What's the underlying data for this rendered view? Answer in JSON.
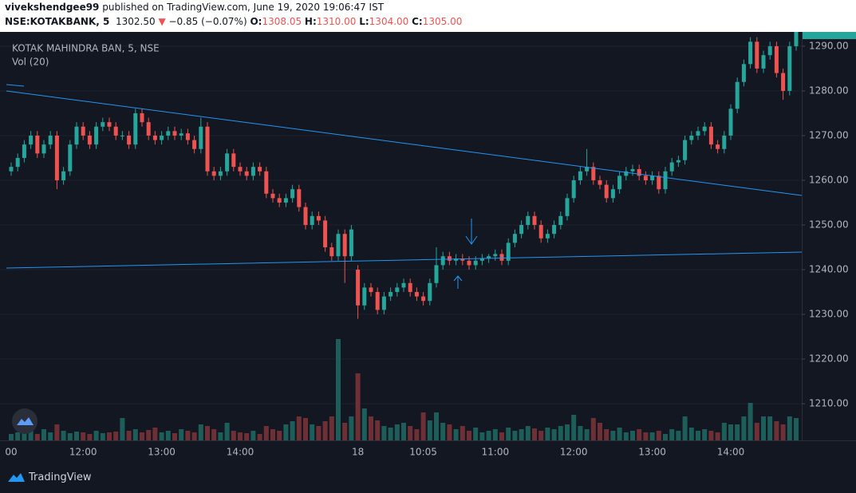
{
  "header": {
    "user": "vivekshendgee99",
    "published": "published on TradingView.com, June 19, 2020 19:06:47 IST",
    "symbol": "NSE:KOTAKBANK, 5",
    "price": "1302.50",
    "arrow": "▼",
    "change": "−0.85 (−0.07%)",
    "o_label": "O:",
    "o": "1308.05",
    "h_label": "H:",
    "h": "1310.00",
    "l_label": "L:",
    "l": "1304.00",
    "c_label": "C:",
    "c": "1305.00"
  },
  "footer": {
    "brand": "TradingView"
  },
  "chart_data": {
    "type": "candlestick",
    "title": "KOTAK MAHINDRA BAN, 5, NSE",
    "volume_label": "Vol (20)",
    "categories": [
      "00",
      null,
      null,
      null,
      null,
      null,
      null,
      null,
      null,
      null,
      null,
      "12:00",
      null,
      null,
      null,
      null,
      null,
      null,
      null,
      null,
      null,
      null,
      null,
      "13:00",
      null,
      null,
      null,
      null,
      null,
      null,
      null,
      null,
      null,
      null,
      null,
      "14:00",
      null,
      null,
      null,
      null,
      null,
      null,
      null,
      null,
      null,
      null,
      null,
      null,
      null,
      null,
      null,
      null,
      null,
      "18",
      null,
      null,
      null,
      null,
      null,
      null,
      null,
      null,
      null,
      "10:05",
      null,
      null,
      null,
      null,
      null,
      null,
      null,
      null,
      null,
      null,
      "11:00",
      null,
      null,
      null,
      null,
      null,
      null,
      null,
      null,
      null,
      null,
      null,
      "12:00",
      null,
      null,
      null,
      null,
      null,
      null,
      null,
      null,
      null,
      null,
      null,
      "13:00",
      null,
      null,
      null,
      null,
      null,
      null,
      null,
      null,
      null,
      null,
      null,
      "14:00",
      null,
      null,
      null,
      null,
      null,
      null,
      null,
      null,
      null,
      null
    ],
    "open": [
      1262,
      1263,
      1265,
      1268,
      1270,
      1266,
      1268,
      1270,
      1260,
      1262,
      1268,
      1272,
      1270,
      1268,
      1272,
      1273,
      1272,
      1270,
      1270,
      1268,
      1275,
      1273,
      1270,
      1269,
      1270,
      1271,
      1270,
      1270.5,
      1269,
      1267,
      1272,
      1262,
      1261,
      1262,
      1266,
      1263,
      1262,
      1261,
      1263,
      1262,
      1257,
      1256,
      1255,
      1256,
      1258,
      1254,
      1250,
      1252,
      1251,
      1245,
      1243,
      1248,
      1243,
      1240,
      1232,
      1236,
      1235,
      1231,
      1234,
      1235,
      1236,
      1237,
      1235,
      1234,
      1233,
      1237,
      1241,
      1243,
      1242,
      1242.5,
      1242,
      1241,
      1242,
      1242.5,
      1243,
      1243.5,
      1242,
      1246,
      1248,
      1250,
      1252,
      1250,
      1247,
      1248,
      1250,
      1252,
      1256,
      1260,
      1262,
      1263,
      1260,
      1259,
      1256,
      1258,
      1261,
      1262,
      1262.5,
      1261,
      1260,
      1261,
      1258,
      1262,
      1264,
      1264.5,
      1269,
      1270,
      1271,
      1272,
      1268,
      1267,
      1270,
      1276,
      1282,
      1286,
      1291,
      1285,
      1288,
      1290,
      1284,
      1280,
      1290
    ],
    "high": [
      1264,
      1266,
      1269,
      1271,
      1271,
      1269,
      1271,
      1271,
      1263,
      1269,
      1273,
      1273,
      1271,
      1273,
      1274,
      1274,
      1273,
      1271,
      1271,
      1276,
      1276,
      1274,
      1271,
      1271,
      1272,
      1272,
      1271.5,
      1271.5,
      1270,
      1274,
      1273,
      1263,
      1263,
      1267,
      1267,
      1264,
      1263,
      1264,
      1264,
      1263,
      1258,
      1257,
      1257,
      1259,
      1259,
      1255,
      1253,
      1253,
      1252,
      1246,
      1249,
      1249,
      1250,
      1241,
      1237,
      1237,
      1236,
      1235,
      1236,
      1237,
      1238,
      1238,
      1236,
      1235,
      1238,
      1245,
      1244,
      1244,
      1243.5,
      1243.5,
      1243,
      1243,
      1243.5,
      1243.5,
      1244.5,
      1244.5,
      1247,
      1249,
      1251,
      1253,
      1253,
      1251,
      1249,
      1251,
      1253,
      1257,
      1261,
      1263,
      1267,
      1264,
      1261,
      1260,
      1259,
      1262,
      1263,
      1263.5,
      1263.5,
      1262,
      1262,
      1262,
      1263,
      1265,
      1265.5,
      1270,
      1271,
      1272,
      1273,
      1273,
      1269,
      1271,
      1277,
      1283,
      1287,
      1292,
      1292,
      1289,
      1291,
      1291,
      1285,
      1291,
      1297
    ],
    "low": [
      1261,
      1262,
      1264,
      1267,
      1265,
      1265,
      1267,
      1258,
      1259,
      1261,
      1267,
      1269,
      1267,
      1267,
      1271,
      1271,
      1269,
      1269,
      1267,
      1267,
      1272,
      1269,
      1268,
      1268,
      1269,
      1269,
      1269,
      1268,
      1266,
      1266,
      1261,
      1260,
      1260,
      1261,
      1262,
      1261,
      1260,
      1260,
      1261,
      1256,
      1255,
      1254,
      1254,
      1255,
      1253,
      1249,
      1249,
      1250,
      1244,
      1242,
      1242,
      1237,
      1242,
      1229,
      1231,
      1234,
      1230,
      1230,
      1233,
      1234,
      1235,
      1234,
      1233,
      1232,
      1232,
      1236,
      1240,
      1241,
      1241,
      1241,
      1240,
      1240,
      1241,
      1241.5,
      1242,
      1241,
      1241,
      1245,
      1247,
      1249,
      1249,
      1246,
      1246,
      1247,
      1249,
      1251,
      1255,
      1259,
      1261,
      1259,
      1258,
      1255,
      1255,
      1257,
      1260,
      1261,
      1260,
      1259,
      1259,
      1257,
      1257,
      1261,
      1263,
      1263.5,
      1268,
      1269,
      1270,
      1267,
      1266,
      1266,
      1269,
      1275,
      1281,
      1285,
      1284,
      1284,
      1287,
      1283,
      1278,
      1279,
      1289
    ],
    "close": [
      1263,
      1265,
      1268,
      1270,
      1266,
      1268,
      1270,
      1260,
      1262,
      1268,
      1272,
      1270,
      1268,
      1272,
      1273,
      1272,
      1270,
      1270,
      1268,
      1275,
      1273,
      1270,
      1269,
      1270,
      1271,
      1270,
      1270.5,
      1269,
      1267,
      1272,
      1262,
      1261,
      1262,
      1266,
      1263,
      1262,
      1261,
      1263,
      1262,
      1257,
      1256,
      1255,
      1256,
      1258,
      1254,
      1250,
      1252,
      1251,
      1245,
      1243,
      1248,
      1243,
      1249,
      1232,
      1236,
      1235,
      1231,
      1234,
      1235,
      1236,
      1237,
      1235,
      1234,
      1233,
      1237,
      1241,
      1243,
      1242,
      1242.5,
      1242,
      1241,
      1242,
      1242.5,
      1243,
      1243.5,
      1242,
      1246,
      1248,
      1250,
      1252,
      1250,
      1247,
      1248,
      1250,
      1252,
      1256,
      1260,
      1262,
      1263,
      1260,
      1259,
      1256,
      1258,
      1261,
      1262,
      1262.5,
      1261,
      1260,
      1261,
      1258,
      1262,
      1264,
      1264.5,
      1269,
      1270,
      1271,
      1272,
      1268,
      1267,
      1270,
      1276,
      1282,
      1286,
      1291,
      1285,
      1288,
      1290,
      1284,
      1280,
      1290,
      1295
    ],
    "volume": [
      8,
      10,
      9,
      12,
      8,
      14,
      10,
      20,
      12,
      9,
      11,
      10,
      8,
      12,
      9,
      10,
      11,
      28,
      12,
      14,
      10,
      13,
      16,
      10,
      12,
      9,
      14,
      12,
      10,
      20,
      18,
      14,
      10,
      22,
      12,
      10,
      9,
      12,
      8,
      18,
      14,
      12,
      20,
      24,
      30,
      28,
      20,
      18,
      24,
      30,
      127,
      22,
      30,
      84,
      40,
      30,
      25,
      18,
      16,
      20,
      22,
      18,
      14,
      35,
      25,
      35,
      22,
      20,
      14,
      18,
      12,
      16,
      10,
      12,
      14,
      10,
      16,
      12,
      14,
      18,
      15,
      12,
      16,
      14,
      18,
      20,
      32,
      18,
      14,
      28,
      22,
      14,
      12,
      16,
      10,
      12,
      14,
      10,
      10,
      12,
      8,
      14,
      12,
      30,
      16,
      12,
      14,
      12,
      10,
      22,
      20,
      20,
      30,
      47,
      22,
      30,
      30,
      24,
      20,
      30,
      28
    ],
    "up_color": "#26a69a",
    "down_color": "#ef5350",
    "volume_up_color": "#1d5e5a",
    "volume_down_color": "#6e2f35",
    "ylim": [
      1201.8,
      1293.2
    ],
    "yticks": [
      {
        "value": 1210,
        "label": "1210.00"
      },
      {
        "value": 1220,
        "label": "1220.00"
      },
      {
        "value": 1230,
        "label": "1230.00"
      },
      {
        "value": 1240,
        "label": "1240.00"
      },
      {
        "value": 1250,
        "label": "1250.00"
      },
      {
        "value": 1260,
        "label": "1260.00"
      },
      {
        "value": 1270,
        "label": "1270.00"
      },
      {
        "value": 1280,
        "label": "1280.00"
      },
      {
        "value": 1290,
        "label": "1290.00"
      }
    ],
    "volume_ylim": [
      0,
      130
    ],
    "grid": true
  }
}
